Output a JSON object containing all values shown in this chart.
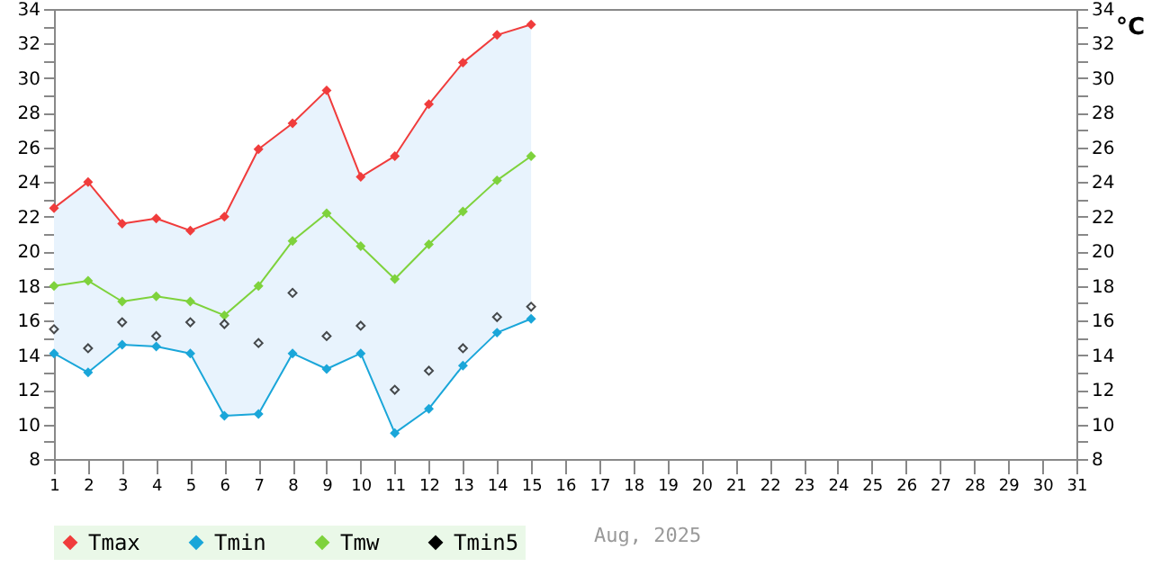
{
  "chart_data": {
    "type": "line",
    "x": [
      1,
      2,
      3,
      4,
      5,
      6,
      7,
      8,
      9,
      10,
      11,
      12,
      13,
      14,
      15
    ],
    "series": [
      {
        "name": "Tmax",
        "color": "#f03c3c",
        "values": [
          22.5,
          24.0,
          21.6,
          21.9,
          21.2,
          22.0,
          25.9,
          27.4,
          29.3,
          24.3,
          25.5,
          28.5,
          30.9,
          32.5,
          33.1
        ]
      },
      {
        "name": "Tmin",
        "color": "#1aa6d9",
        "values": [
          14.1,
          13.0,
          14.6,
          14.5,
          14.1,
          10.5,
          10.6,
          14.1,
          13.2,
          14.1,
          9.5,
          10.9,
          13.4,
          15.3,
          16.1
        ]
      },
      {
        "name": "Tmw",
        "color": "#7ed23c",
        "values": [
          18.0,
          18.3,
          17.1,
          17.4,
          17.1,
          16.3,
          18.0,
          20.6,
          22.2,
          20.3,
          18.4,
          20.4,
          22.3,
          24.1,
          25.5
        ],
        "lower": [
          14.1,
          13.0,
          14.6,
          14.5,
          14.1,
          10.5,
          10.6,
          14.1,
          13.2,
          14.1,
          9.5,
          10.9,
          13.4,
          15.3,
          16.1
        ],
        "upper": [
          22.5,
          24.0,
          21.6,
          21.9,
          21.2,
          22.0,
          25.9,
          27.4,
          29.3,
          24.3,
          25.5,
          28.5,
          30.9,
          32.5,
          33.1
        ]
      },
      {
        "name": "Tmin5",
        "type": "scatter",
        "marker": "diamond",
        "color": "#000000",
        "values": [
          15.5,
          14.4,
          15.9,
          15.1,
          15.9,
          15.8,
          14.7,
          17.6,
          15.1,
          15.7,
          12.0,
          13.1,
          14.4,
          16.2,
          16.8
        ]
      }
    ],
    "xlim": [
      1,
      31
    ],
    "xticks": [
      1,
      2,
      3,
      4,
      5,
      6,
      7,
      8,
      9,
      10,
      11,
      12,
      13,
      14,
      15,
      16,
      17,
      18,
      19,
      20,
      21,
      22,
      23,
      24,
      25,
      26,
      27,
      28,
      29,
      30,
      31
    ],
    "ylim": [
      8,
      34
    ],
    "yticks": [
      8,
      {
        "value": 9,
        "label": null
      },
      10,
      {
        "value": 11,
        "label": null
      },
      12,
      {
        "value": 13,
        "label": null
      },
      14,
      {
        "value": 15,
        "label": null
      },
      16,
      {
        "value": 17,
        "label": null
      },
      18,
      {
        "value": 19,
        "label": null
      },
      20,
      {
        "value": 21,
        "label": null
      },
      22,
      {
        "value": 23,
        "label": null
      },
      24,
      {
        "value": 25,
        "label": null
      },
      26,
      {
        "value": 27,
        "label": null
      },
      28,
      {
        "value": 29,
        "label": null
      },
      30,
      {
        "value": 31,
        "label": null
      },
      32,
      {
        "value": 33,
        "label": null
      },
      34
    ],
    "y2lim": [
      8,
      34
    ],
    "y2ticks": [
      8,
      {
        "value": 9,
        "label": null
      },
      10,
      {
        "value": 11,
        "label": null
      },
      12,
      {
        "value": 13,
        "label": null
      },
      14,
      {
        "value": 15,
        "label": null
      },
      16,
      {
        "value": 17,
        "label": null
      },
      18,
      {
        "value": 19,
        "label": null
      },
      20,
      {
        "value": 21,
        "label": null
      },
      22,
      {
        "value": 23,
        "label": null
      },
      24,
      {
        "value": 25,
        "label": null
      },
      26,
      {
        "value": 27,
        "label": null
      },
      28,
      {
        "value": 29,
        "label": null
      },
      30,
      {
        "value": 31,
        "label": null
      },
      32,
      {
        "value": 33,
        "label": null
      },
      34
    ],
    "marker": "diamond",
    "legend": "bottom",
    "grid": false,
    "annotations": [
      "°C",
      "Aug, 2025"
    ]
  }
}
